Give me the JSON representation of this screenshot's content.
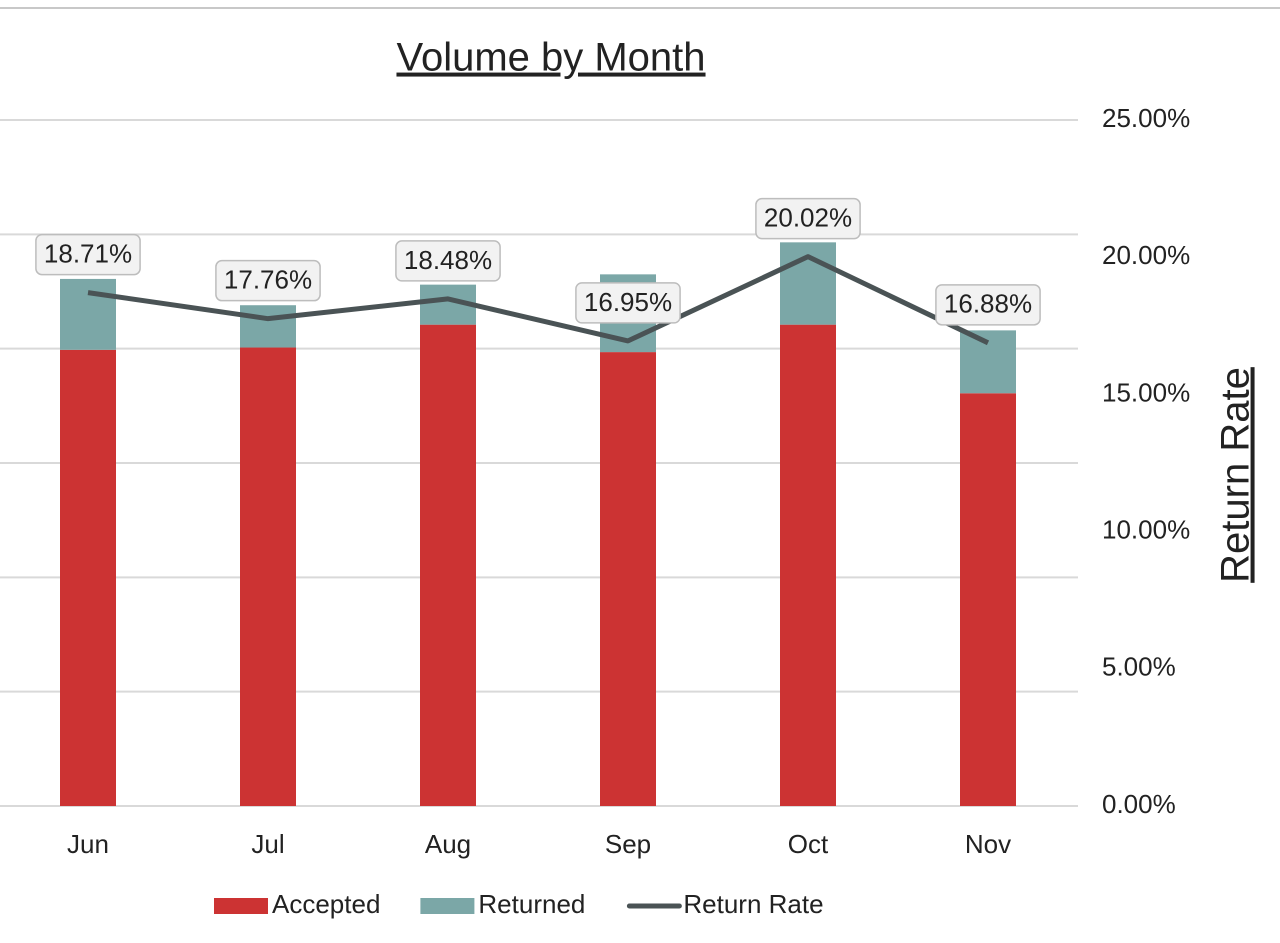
{
  "chart_data": {
    "type": "bar+line",
    "title": "Volume by Month",
    "y2_label": "Return Rate",
    "categories": [
      "Jun",
      "Jul",
      "Aug",
      "Sep",
      "Oct",
      "Nov"
    ],
    "ylim": [
      0,
      600
    ],
    "yticks": [
      0,
      100,
      200,
      300,
      400,
      500,
      600
    ],
    "grid": true,
    "y2lim": [
      0,
      25
    ],
    "y2ticks": [
      {
        "value": 0,
        "label": "0.00%"
      },
      {
        "value": 5,
        "label": "5.00%"
      },
      {
        "value": 10,
        "label": "10.00%"
      },
      {
        "value": 15,
        "label": "15.00%"
      },
      {
        "value": 20,
        "label": "20.00%"
      },
      {
        "value": 25,
        "label": "25.00%"
      }
    ],
    "legend": "bottom",
    "series": [
      {
        "name": "Accepted",
        "type": "bar",
        "stacked": true,
        "color": "#cc3333",
        "values": [
          399,
          401,
          421,
          397,
          421,
          361
        ]
      },
      {
        "name": "Returned",
        "type": "bar",
        "stacked": true,
        "color": "#7ba7a7",
        "values": [
          62,
          37,
          35,
          68,
          72,
          55
        ]
      },
      {
        "name": "Return Rate",
        "type": "line",
        "axis": "y2",
        "color": "#4a5355",
        "values": [
          18.71,
          17.76,
          18.48,
          16.95,
          20.02,
          16.88
        ],
        "value_labels": [
          "18.71%",
          "17.76%",
          "18.48%",
          "16.95%",
          "20.02%",
          "16.88%"
        ]
      }
    ]
  }
}
